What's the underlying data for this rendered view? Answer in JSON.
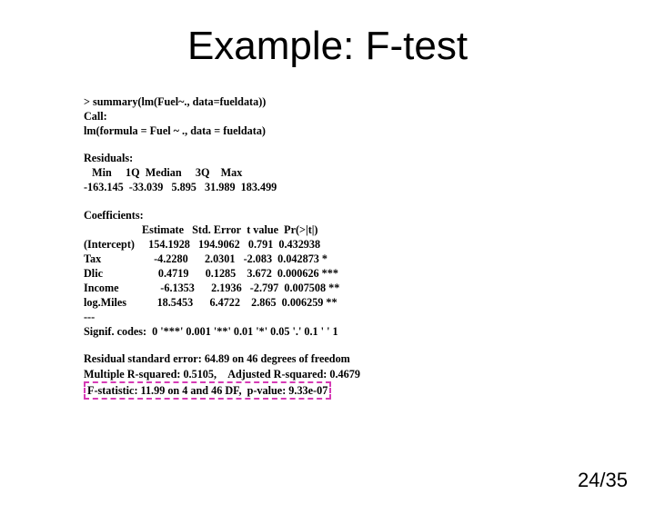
{
  "title": "Example: F-test",
  "cmd1": "> summary(lm(Fuel~., data=fueldata))",
  "cmd2": "Call:",
  "cmd3": "lm(formula = Fuel ~ ., data = fueldata)",
  "resid_header": "Residuals:",
  "resid_labels": "   Min     1Q  Median     3Q    Max",
  "resid_values": "-163.145  -33.039   5.895   31.989  183.499",
  "coef_header": "Coefficients:",
  "coef_cols": "                     Estimate   Std. Error  t value  Pr(>|t|)",
  "row_intercept": "(Intercept)     154.1928   194.9062   0.791  0.432938",
  "row_tax": "Tax                   -4.2280      2.0301   -2.083  0.042873 *",
  "row_dlic": "Dlic                    0.4719      0.1285    3.672  0.000626 ***",
  "row_income": "Income               -6.1353      2.1936   -2.797  0.007508 **",
  "row_logmiles": "log.Miles           18.5453      6.4722    2.865  0.006259 **",
  "dashes": "---",
  "signif": "Signif. codes:  0 '***' 0.001 '**' 0.01 '*' 0.05 '.' 0.1 ' ' 1",
  "rse": "Residual standard error: 64.89 on 46 degrees of freedom",
  "rsq": "Multiple R-squared: 0.5105,    Adjusted R-squared: 0.4679",
  "fstat": "F-statistic: 11.99 on 4 and 46 DF,  p-value: 9.33e-07",
  "page": "24/35",
  "highlight_color": "#d63bb5"
}
